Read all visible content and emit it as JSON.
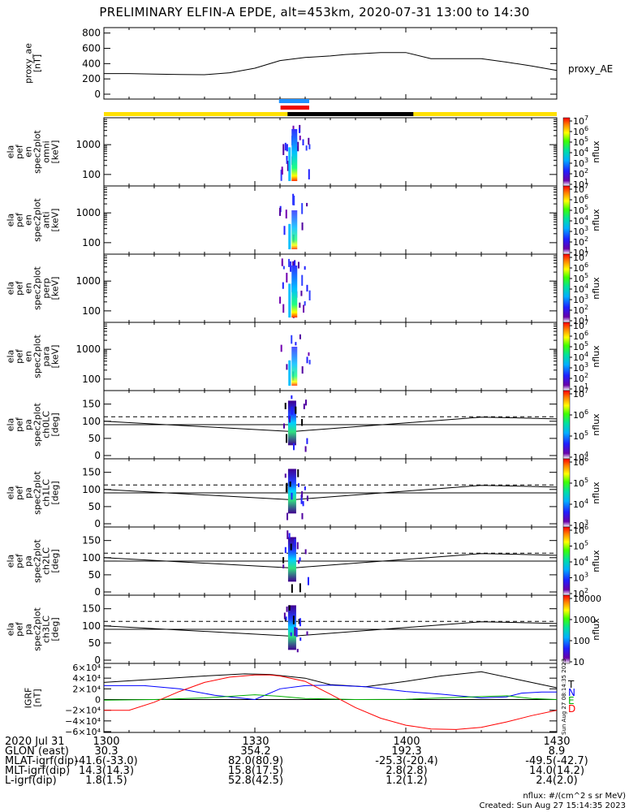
{
  "title": "PRELIMINARY ELFIN-A EPDE, alt=453km, 2020-07-31 13:00 to 14:30",
  "chart_data": {
    "type": "line",
    "x_ticks": [
      "1300",
      "1330",
      "1400",
      "1430"
    ],
    "panels": [
      {
        "id": "proxy_ae",
        "ylabel": "proxy_ae [nT]",
        "yticks": [
          "0",
          "200",
          "400",
          "600",
          "800"
        ],
        "ylim": [
          0,
          850
        ],
        "legend": "proxy_AE",
        "series": [
          {
            "name": "proxy_AE",
            "x": [
              0,
              5,
              10,
              15,
              20,
              25,
              30,
              33,
              35,
              40,
              45,
              48,
              55,
              60,
              65,
              70,
              75,
              80,
              85,
              90
            ],
            "y": [
              270,
              270,
              262,
              258,
              255,
              280,
              340,
              400,
              440,
              480,
              500,
              520,
              545,
              545,
              465,
              465,
              465,
              420,
              370,
              310
            ]
          }
        ]
      },
      {
        "id": "spec-en-omni",
        "ylabel": [
          "ela",
          "pef",
          "en",
          "spec2plot",
          "omni",
          "[keV]"
        ],
        "yticks": [
          "100",
          "1000"
        ],
        "colorbar": {
          "ticks": [
            "10^1",
            "10^2",
            "10^3",
            "10^4",
            "10^5",
            "10^6",
            "10^7"
          ],
          "label": "nflux"
        }
      },
      {
        "id": "spec-en-anti",
        "ylabel": [
          "ela",
          "pef",
          "en",
          "spec2plot",
          "anti",
          "[keV]"
        ],
        "yticks": [
          "100",
          "1000"
        ],
        "colorbar": {
          "ticks": [
            "10^1",
            "10^2",
            "10^3",
            "10^4",
            "10^5",
            "10^6",
            "10^7"
          ],
          "label": "nflux"
        }
      },
      {
        "id": "spec-en-perp",
        "ylabel": [
          "ela",
          "pef",
          "en",
          "spec2plot",
          "perp",
          "[keV]"
        ],
        "yticks": [
          "100",
          "1000"
        ],
        "colorbar": {
          "ticks": [
            "10^1",
            "10^2",
            "10^3",
            "10^4",
            "10^5",
            "10^6",
            "10^7"
          ],
          "label": "nflux"
        }
      },
      {
        "id": "spec-en-para",
        "ylabel": [
          "ela",
          "pef",
          "en",
          "spec2plot",
          "para",
          "[keV]"
        ],
        "yticks": [
          "100",
          "1000"
        ],
        "colorbar": {
          "ticks": [
            "10^1",
            "10^2",
            "10^3",
            "10^4",
            "10^5",
            "10^6",
            "10^7"
          ],
          "label": "nflux"
        }
      },
      {
        "id": "spec-pa-ch0",
        "ylabel": [
          "ela",
          "pef",
          "pa",
          "spec2plot",
          "ch0LC",
          "[deg]"
        ],
        "yticks": [
          "0",
          "50",
          "100",
          "150"
        ],
        "colorbar": {
          "ticks": [
            "10^4",
            "10^5",
            "10^6",
            "10^7"
          ],
          "label": "nflux"
        }
      },
      {
        "id": "spec-pa-ch1",
        "ylabel": [
          "ela",
          "pef",
          "pa",
          "spec2plot",
          "ch1LC",
          "[deg]"
        ],
        "yticks": [
          "0",
          "50",
          "100",
          "150"
        ],
        "colorbar": {
          "ticks": [
            "10^3",
            "10^4",
            "10^5",
            "10^6"
          ],
          "label": "nflux"
        }
      },
      {
        "id": "spec-pa-ch2",
        "ylabel": [
          "ela",
          "pef",
          "pa",
          "spec2plot",
          "ch2LC",
          "[deg]"
        ],
        "yticks": [
          "0",
          "50",
          "100",
          "150"
        ],
        "colorbar": {
          "ticks": [
            "10^2",
            "10^3",
            "10^4",
            "10^5",
            "10^6"
          ],
          "label": "nflux"
        }
      },
      {
        "id": "spec-pa-ch3",
        "ylabel": [
          "ela",
          "pef",
          "pa",
          "spec2plot",
          "ch3LC",
          "[deg]"
        ],
        "yticks": [
          "0",
          "50",
          "100",
          "150"
        ],
        "colorbar": {
          "ticks": [
            "10",
            "100",
            "1000",
            "10000"
          ],
          "label": "nflux"
        }
      },
      {
        "id": "igrf",
        "ylabel": [
          "IGRF",
          "[nT]"
        ],
        "yticks": [
          "−6×10⁴",
          "−4×10⁴",
          "−2×10⁴",
          "0",
          "2×10⁴",
          "4×10⁴",
          "6×10⁴"
        ],
        "ylim": [
          -60000,
          60000
        ],
        "legend": [
          "T",
          "N",
          "E",
          "D"
        ],
        "series": [
          {
            "name": "T",
            "color": "#000000",
            "x": [
              0,
              10,
              20,
              28,
              33,
              40,
              45,
              52,
              60,
              67,
              75,
              82,
              90
            ],
            "y": [
              32000,
              38000,
              44000,
              48000,
              47000,
              40000,
              28000,
              24000,
              34000,
              44000,
              52000,
              38000,
              22000
            ]
          },
          {
            "name": "N",
            "color": "#0000ff",
            "x": [
              0,
              8,
              15,
              22,
              30,
              35,
              40,
              45,
              52,
              60,
              67,
              75,
              80,
              83,
              87,
              90
            ],
            "y": [
              26000,
              26000,
              20000,
              8000,
              0,
              20000,
              26000,
              27000,
              24000,
              15000,
              10000,
              3000,
              5000,
              12000,
              14000,
              14000
            ]
          },
          {
            "name": "E",
            "color": "#00b000",
            "x": [
              0,
              10,
              20,
              30,
              35,
              40,
              50,
              60,
              70,
              80,
              85,
              90
            ],
            "y": [
              -1000,
              0,
              3000,
              9000,
              6000,
              2000,
              0,
              500,
              4000,
              7000,
              2000,
              0
            ]
          },
          {
            "name": "D",
            "color": "#ff0000",
            "x": [
              0,
              5,
              10,
              15,
              20,
              25,
              30,
              33,
              35,
              40,
              45,
              50,
              55,
              60,
              65,
              70,
              75,
              80,
              85,
              90
            ],
            "y": [
              -20000,
              -20000,
              -5000,
              15000,
              32000,
              42000,
              46000,
              46000,
              44000,
              34000,
              10000,
              -15000,
              -35000,
              -48000,
              -55000,
              -56000,
              -52000,
              -42000,
              -30000,
              -20000
            ]
          }
        ]
      }
    ],
    "colorbar_label": "nflux",
    "dashed_ref_deg": 113,
    "trace_ref_deg_range": [
      100,
      70
    ]
  },
  "bottom_table": {
    "rows": [
      {
        "label": "2020 Jul 31",
        "values": [
          "1300",
          "1330",
          "1400",
          "1430"
        ]
      },
      {
        "label": "GLON (east)",
        "values": [
          "30.3",
          "354.2",
          "192.3",
          "8.9"
        ]
      },
      {
        "label": "MLAT-igrf(dip)",
        "values": [
          "-41.6(-33.0)",
          "82.0(80.9)",
          "-25.3(-20.4)",
          "-49.5(-42.7)"
        ]
      },
      {
        "label": "MLT-igrf(dip)",
        "values": [
          "14.3(14.3)",
          "15.8(17.5)",
          "2.8(2.8)",
          "14.0(14.2)"
        ]
      },
      {
        "label": "L-igrf(dip)",
        "values": [
          "1.8(1.5)",
          "52.8(42.5)",
          "1.2(1.2)",
          "2.4(2.0)"
        ]
      }
    ]
  },
  "footer": {
    "units": "nflux: #/(cm^2 s sr MeV)",
    "created": "Created: Sun Aug 27 15:14:35 2023",
    "side_stamp": "Sun Aug 27 08:14:35 2023"
  },
  "colors": {
    "bar_yellow": "#ffe000",
    "bar_black": "#000000",
    "sci_blue": "#1e90ff",
    "sci_red": "#ee0000"
  }
}
